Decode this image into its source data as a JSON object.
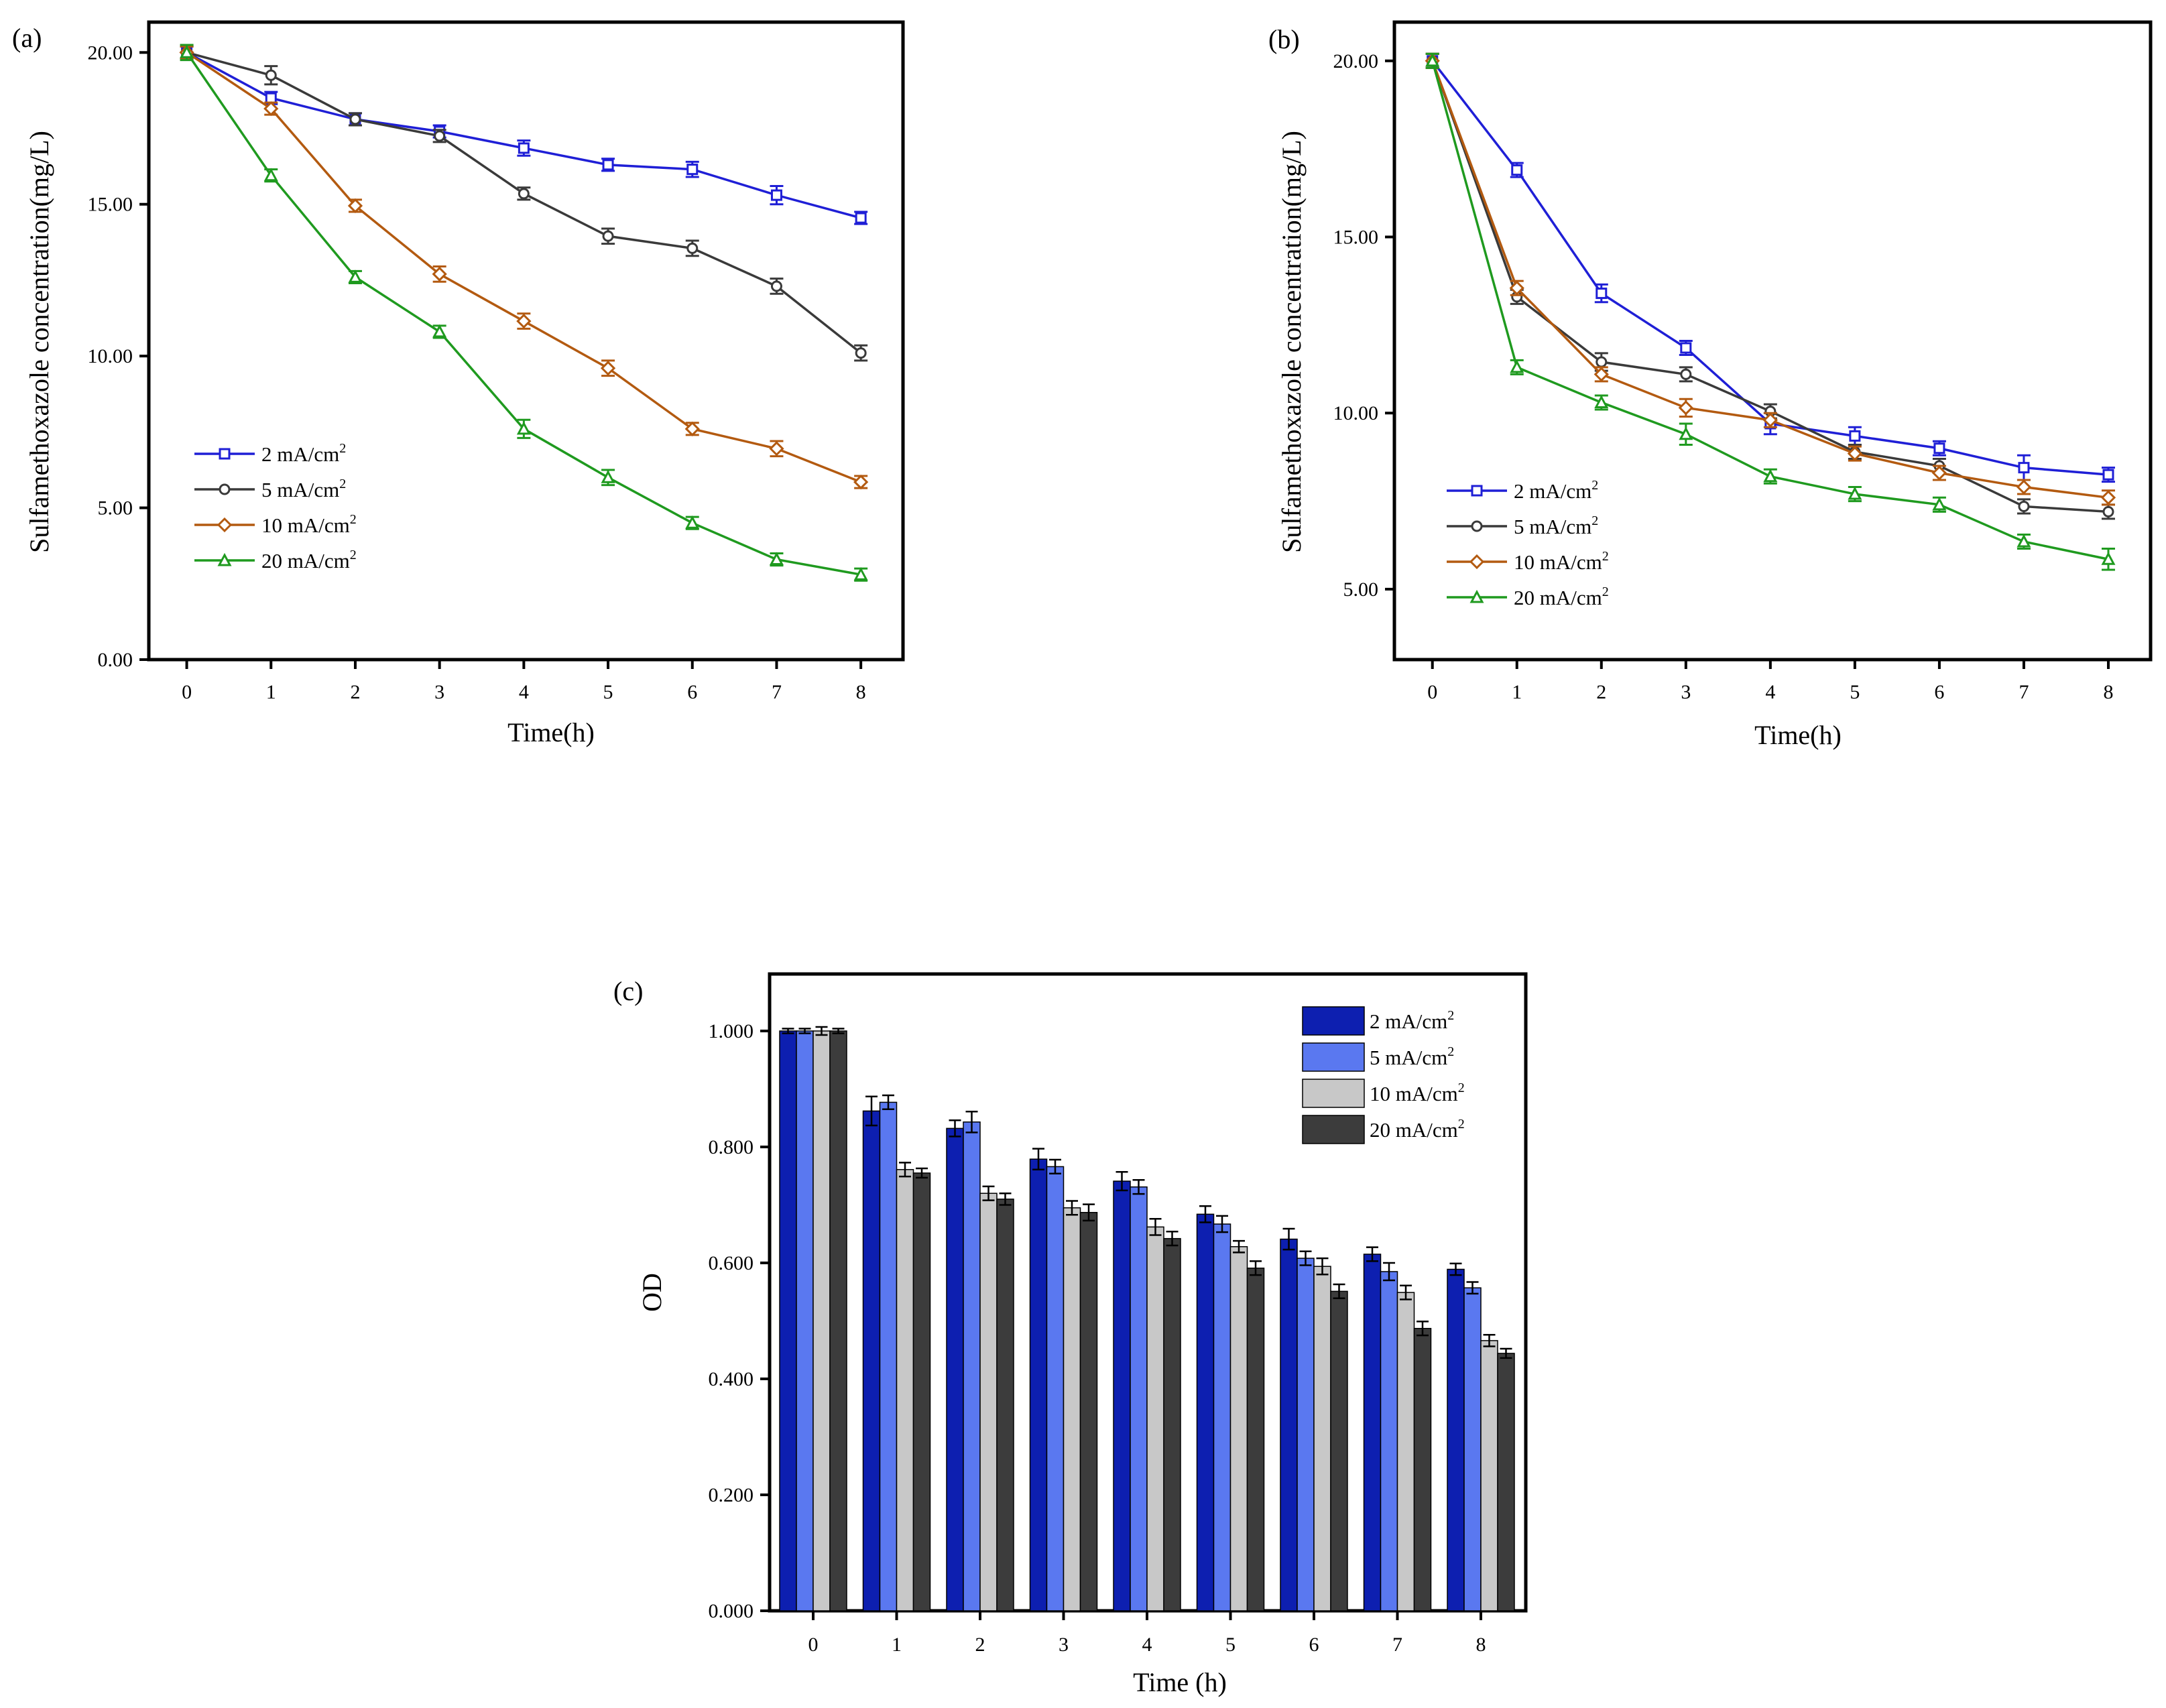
{
  "legend_labels": [
    "2 mA/cm",
    "5 mA/cm",
    "10 mA/cm",
    "20 mA/cm"
  ],
  "legend_superscript": "2",
  "chart_data": [
    {
      "id": "a",
      "panel_label": "(a)",
      "type": "line",
      "xlabel": "Time(h)",
      "ylabel": "Sulfamethoxazole concentration(mg/L)",
      "x": [
        0,
        1,
        2,
        3,
        4,
        5,
        6,
        7,
        8
      ],
      "xticks": [
        "0",
        "1",
        "2",
        "3",
        "4",
        "5",
        "6",
        "7",
        "8"
      ],
      "yticks": [
        "0.00",
        "5.00",
        "10.00",
        "15.00",
        "20.00"
      ],
      "ytick_values": [
        0,
        5,
        10,
        15,
        20
      ],
      "xlim": [
        -0.45,
        8.5
      ],
      "ylim": [
        0,
        21
      ],
      "legend_position": "lower-left",
      "series": [
        {
          "name": "2 mA/cm2",
          "color": "#1f1fd6",
          "marker": "square",
          "values": [
            20.0,
            18.5,
            17.8,
            17.4,
            16.85,
            16.3,
            16.15,
            15.3,
            14.55
          ],
          "errors": [
            0.2,
            0.2,
            0.2,
            0.2,
            0.25,
            0.2,
            0.25,
            0.3,
            0.2
          ]
        },
        {
          "name": "5 mA/cm2",
          "color": "#3a3a3a",
          "marker": "circle",
          "values": [
            20.0,
            19.25,
            17.8,
            17.25,
            15.35,
            13.95,
            13.55,
            12.3,
            10.1
          ],
          "errors": [
            0.2,
            0.3,
            0.2,
            0.2,
            0.2,
            0.25,
            0.25,
            0.25,
            0.25
          ]
        },
        {
          "name": "10 mA/cm2",
          "color": "#b35a10",
          "marker": "diamond",
          "values": [
            20.0,
            18.15,
            14.95,
            12.7,
            11.15,
            9.6,
            7.6,
            6.95,
            5.85
          ],
          "errors": [
            0.2,
            0.2,
            0.2,
            0.25,
            0.25,
            0.25,
            0.2,
            0.25,
            0.2
          ]
        },
        {
          "name": "20 mA/cm2",
          "color": "#1f9a1f",
          "marker": "triangle",
          "values": [
            20.0,
            15.95,
            12.6,
            10.8,
            7.6,
            6.0,
            4.5,
            3.3,
            2.8
          ],
          "errors": [
            0.25,
            0.2,
            0.2,
            0.2,
            0.3,
            0.25,
            0.2,
            0.2,
            0.2
          ]
        }
      ]
    },
    {
      "id": "b",
      "panel_label": "(b)",
      "type": "line",
      "xlabel": "Time(h)",
      "ylabel": "Sulfamethoxazole concentration(mg/L)",
      "x": [
        0,
        1,
        2,
        3,
        4,
        5,
        6,
        7,
        8
      ],
      "xticks": [
        "0",
        "1",
        "2",
        "3",
        "4",
        "5",
        "6",
        "7",
        "8"
      ],
      "yticks": [
        "5.00",
        "10.00",
        "15.00",
        "20.00"
      ],
      "ytick_values": [
        5,
        10,
        15,
        20
      ],
      "xlim": [
        -0.45,
        8.5
      ],
      "ylim": [
        3.0,
        21.1
      ],
      "legend_position": "lower-left",
      "series": [
        {
          "name": "2 mA/cm2",
          "color": "#1f1fd6",
          "marker": "square",
          "values": [
            20.0,
            16.9,
            13.4,
            11.85,
            9.7,
            9.35,
            9.0,
            8.45,
            8.25
          ],
          "errors": [
            0.2,
            0.2,
            0.25,
            0.2,
            0.3,
            0.25,
            0.2,
            0.35,
            0.2
          ]
        },
        {
          "name": "5 mA/cm2",
          "color": "#3a3a3a",
          "marker": "circle",
          "values": [
            20.0,
            13.3,
            11.45,
            11.1,
            10.05,
            8.9,
            8.5,
            7.35,
            7.2
          ],
          "errors": [
            0.2,
            0.2,
            0.25,
            0.2,
            0.2,
            0.2,
            0.2,
            0.2,
            0.2
          ]
        },
        {
          "name": "10 mA/cm2",
          "color": "#b35a10",
          "marker": "diamond",
          "values": [
            20.0,
            13.55,
            11.1,
            10.15,
            9.8,
            8.85,
            8.3,
            7.9,
            7.6
          ],
          "errors": [
            0.2,
            0.2,
            0.2,
            0.25,
            0.2,
            0.2,
            0.2,
            0.2,
            0.2
          ]
        },
        {
          "name": "20 mA/cm2",
          "color": "#1f9a1f",
          "marker": "triangle",
          "values": [
            20.0,
            11.3,
            10.3,
            9.4,
            8.2,
            7.7,
            7.4,
            6.35,
            5.85
          ],
          "errors": [
            0.2,
            0.2,
            0.2,
            0.3,
            0.2,
            0.2,
            0.2,
            0.2,
            0.3
          ]
        }
      ]
    },
    {
      "id": "c",
      "panel_label": "(c)",
      "type": "bar",
      "xlabel": "Time (h)",
      "ylabel": "OD",
      "categories": [
        "0",
        "1",
        "2",
        "3",
        "4",
        "5",
        "6",
        "7",
        "8"
      ],
      "yticks": [
        "0.000",
        "0.200",
        "0.400",
        "0.600",
        "0.800",
        "1.000"
      ],
      "ytick_values": [
        0,
        0.2,
        0.4,
        0.6,
        0.8,
        1.0
      ],
      "ylim": [
        0,
        1.1
      ],
      "legend_position": "top-right",
      "series": [
        {
          "name": "2 mA/cm2",
          "color": "#0d1fb0",
          "values": [
            1.0,
            0.862,
            0.832,
            0.779,
            0.741,
            0.684,
            0.641,
            0.615,
            0.589
          ],
          "errors": [
            0.004,
            0.025,
            0.014,
            0.018,
            0.016,
            0.014,
            0.018,
            0.012,
            0.01
          ]
        },
        {
          "name": "5 mA/cm2",
          "color": "#5a78f0",
          "values": [
            1.0,
            0.877,
            0.843,
            0.766,
            0.731,
            0.667,
            0.608,
            0.585,
            0.557
          ],
          "errors": [
            0.004,
            0.012,
            0.018,
            0.012,
            0.012,
            0.014,
            0.012,
            0.015,
            0.01
          ]
        },
        {
          "name": "10 mA/cm2",
          "color": "#c8c8c8",
          "values": [
            1.0,
            0.761,
            0.72,
            0.695,
            0.662,
            0.628,
            0.594,
            0.549,
            0.466
          ],
          "errors": [
            0.007,
            0.012,
            0.012,
            0.012,
            0.014,
            0.01,
            0.014,
            0.012,
            0.01
          ]
        },
        {
          "name": "20 mA/cm2",
          "color": "#3c3c3c",
          "values": [
            1.0,
            0.755,
            0.71,
            0.687,
            0.642,
            0.591,
            0.551,
            0.487,
            0.444
          ],
          "errors": [
            0.004,
            0.008,
            0.01,
            0.014,
            0.012,
            0.012,
            0.012,
            0.012,
            0.008
          ]
        }
      ]
    }
  ]
}
